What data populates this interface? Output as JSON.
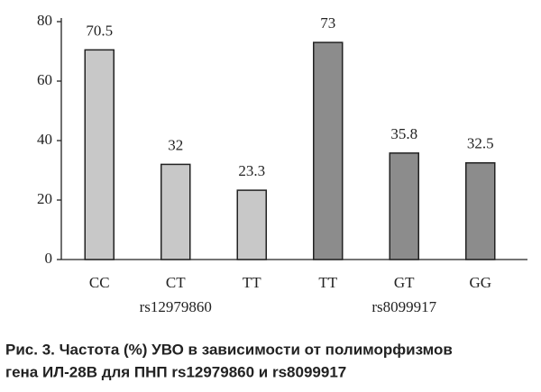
{
  "chart_data": {
    "type": "bar",
    "groups": [
      {
        "name": "rs12979860",
        "color": "#c8c8c8",
        "categories": [
          "CC",
          "CT",
          "TT"
        ],
        "values": [
          70.5,
          32,
          23.3
        ]
      },
      {
        "name": "rs8099917",
        "color": "#8c8c8c",
        "categories": [
          "TT",
          "GT",
          "GG"
        ],
        "values": [
          73,
          35.8,
          32.5
        ]
      }
    ],
    "ylim": [
      0,
      80
    ],
    "yticks": [
      0,
      20,
      40,
      60,
      80
    ],
    "grid": false,
    "caption": [
      "Рис. 3. Частота (%) УВО в зависимости от полиморфизмов",
      "гена ИЛ-28В для ПНП rs12979860 и rs8099917"
    ]
  }
}
